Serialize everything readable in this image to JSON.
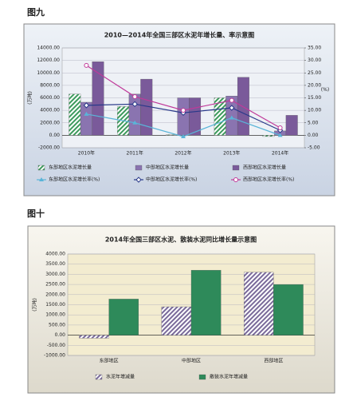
{
  "figure_labels": [
    "图九",
    "图十"
  ],
  "chart_data": [
    {
      "type": "combo",
      "title": "2010—2014年全国三部区水泥年增长量、率示意图",
      "y_label": "(万吨)",
      "y2_label": "(%)",
      "categories": [
        "2010年",
        "2011年",
        "2012年",
        "2013年",
        "2014年"
      ],
      "ylim": [
        -2000,
        14000
      ],
      "yticks": [
        {
          "value": -2000,
          "label": "-2000.00"
        },
        {
          "value": 0,
          "label": "0.00"
        },
        {
          "value": 2000,
          "label": "2000.00"
        },
        {
          "value": 4000,
          "label": "4000.00"
        },
        {
          "value": 6000,
          "label": "6000.00"
        },
        {
          "value": 8000,
          "label": "8000.00"
        },
        {
          "value": 10000,
          "label": "10000.00"
        },
        {
          "value": 12000,
          "label": "12000.00"
        },
        {
          "value": 14000,
          "label": "14000.00"
        }
      ],
      "y2lim": [
        -5,
        35
      ],
      "y2ticks": [
        {
          "value": -5,
          "label": "-5.00"
        },
        {
          "value": 0,
          "label": "0.00"
        },
        {
          "value": 5,
          "label": "5.00"
        },
        {
          "value": 10,
          "label": "10.00"
        },
        {
          "value": 15,
          "label": "15.00"
        },
        {
          "value": 20,
          "label": "20.00"
        },
        {
          "value": 25,
          "label": "25.00"
        },
        {
          "value": 30,
          "label": "30.00"
        },
        {
          "value": 35,
          "label": "35.00"
        }
      ],
      "grid": true,
      "series": [
        {
          "name": "东部地区水泥增长量",
          "type": "bar",
          "fill_style": "hatch",
          "color": "#3c9a5c",
          "values": [
            6600,
            4600,
            100,
            6000,
            -200
          ]
        },
        {
          "name": "中部地区水泥增长量",
          "type": "bar",
          "fill_style": "solid",
          "color": "#8a74b0",
          "values": [
            5300,
            6600,
            6000,
            6300,
            700
          ]
        },
        {
          "name": "西部地区水泥增长量",
          "type": "bar",
          "fill_style": "solid",
          "color": "#7a5a9a",
          "values": [
            11800,
            9000,
            6000,
            9300,
            3200
          ]
        },
        {
          "name": "东部地区水泥增长率(%)",
          "type": "line",
          "axis": "y2",
          "marker": "triangle",
          "color": "#5ab4d8",
          "values": [
            8.5,
            5,
            -0.5,
            7,
            0
          ]
        },
        {
          "name": "中部地区水泥增长率(%)",
          "type": "line",
          "axis": "y2",
          "marker": "diamond",
          "color": "#2a3a8a",
          "values": [
            12,
            12.5,
            9,
            11,
            2
          ]
        },
        {
          "name": "西部地区水泥增长率(%)",
          "type": "line",
          "axis": "y2",
          "marker": "circle",
          "color": "#c03a9a",
          "values": [
            28,
            15.5,
            10,
            14,
            3
          ]
        }
      ]
    },
    {
      "type": "bar",
      "title": "2014年全国三部区水泥、散装水泥同比增长量示意图",
      "y_label": "(万吨)",
      "categories": [
        "东部地区",
        "中部地区",
        "西部地区"
      ],
      "ylim": [
        -1000,
        4000
      ],
      "yticks": [
        {
          "value": -1000,
          "label": "-1000.00"
        },
        {
          "value": -500,
          "label": "-500.00"
        },
        {
          "value": 0,
          "label": "0.00"
        },
        {
          "value": 500,
          "label": "500.00"
        },
        {
          "value": 1000,
          "label": "1000.00"
        },
        {
          "value": 1500,
          "label": "1500.00"
        },
        {
          "value": 2000,
          "label": "2000.00"
        },
        {
          "value": 2500,
          "label": "2500.00"
        },
        {
          "value": 3000,
          "label": "3000.00"
        },
        {
          "value": 3500,
          "label": "3500.00"
        },
        {
          "value": 4000,
          "label": "4000.00"
        }
      ],
      "grid": true,
      "series": [
        {
          "name": "水泥年增减量",
          "type": "bar",
          "fill_style": "hatch",
          "color": "#7a6a9a",
          "values": [
            -150,
            1400,
            3100
          ]
        },
        {
          "name": "散装水泥年增减量",
          "type": "bar",
          "fill_style": "solid",
          "color": "#2e8a5a",
          "values": [
            1780,
            3200,
            2500
          ]
        }
      ]
    }
  ]
}
